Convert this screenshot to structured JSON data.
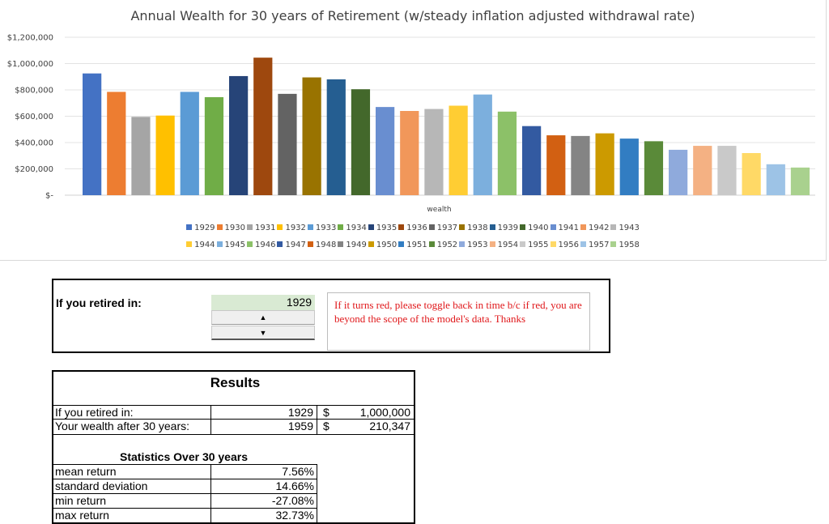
{
  "chart_data": {
    "type": "bar",
    "title": "Annual Wealth for 30 years of Retirement (w/steady inflation adjusted withdrawal rate)",
    "xlabel": "wealth",
    "ylabel": "",
    "ylim": [
      0,
      1200000
    ],
    "yticks": [
      "$-",
      "$200,000",
      "$400,000",
      "$600,000",
      "$800,000",
      "$1,000,000",
      "$1,200,000"
    ],
    "grid": true,
    "legend_position": "bottom",
    "series": [
      {
        "name": "1929",
        "values": [
          925000
        ],
        "color": "#4472C4"
      },
      {
        "name": "1930",
        "values": [
          785000
        ],
        "color": "#ED7D31"
      },
      {
        "name": "1931",
        "values": [
          595000
        ],
        "color": "#A5A5A5"
      },
      {
        "name": "1932",
        "values": [
          605000
        ],
        "color": "#FFC000"
      },
      {
        "name": "1933",
        "values": [
          785000
        ],
        "color": "#5B9BD5"
      },
      {
        "name": "1934",
        "values": [
          745000
        ],
        "color": "#70AD47"
      },
      {
        "name": "1935",
        "values": [
          905000
        ],
        "color": "#264478"
      },
      {
        "name": "1936",
        "values": [
          1045000
        ],
        "color": "#9E480E"
      },
      {
        "name": "1937",
        "values": [
          770000
        ],
        "color": "#636363"
      },
      {
        "name": "1938",
        "values": [
          895000
        ],
        "color": "#997300"
      },
      {
        "name": "1939",
        "values": [
          880000
        ],
        "color": "#255E91"
      },
      {
        "name": "1940",
        "values": [
          805000
        ],
        "color": "#43682B"
      },
      {
        "name": "1941",
        "values": [
          670000
        ],
        "color": "#698ED0"
      },
      {
        "name": "1942",
        "values": [
          640000
        ],
        "color": "#F1975A"
      },
      {
        "name": "1943",
        "values": [
          655000
        ],
        "color": "#B7B7B7"
      },
      {
        "name": "1944",
        "values": [
          680000
        ],
        "color": "#FFCD33"
      },
      {
        "name": "1945",
        "values": [
          765000
        ],
        "color": "#7CAFDD"
      },
      {
        "name": "1946",
        "values": [
          635000
        ],
        "color": "#8CC168"
      },
      {
        "name": "1947",
        "values": [
          525000
        ],
        "color": "#335AA1"
      },
      {
        "name": "1948",
        "values": [
          455000
        ],
        "color": "#D26012"
      },
      {
        "name": "1949",
        "values": [
          450000
        ],
        "color": "#848484"
      },
      {
        "name": "1950",
        "values": [
          470000
        ],
        "color": "#CC9A00"
      },
      {
        "name": "1951",
        "values": [
          430000
        ],
        "color": "#327DC2"
      },
      {
        "name": "1952",
        "values": [
          410000
        ],
        "color": "#5A8A39"
      },
      {
        "name": "1953",
        "values": [
          345000
        ],
        "color": "#8FAADC"
      },
      {
        "name": "1954",
        "values": [
          375000
        ],
        "color": "#F4B183"
      },
      {
        "name": "1955",
        "values": [
          375000
        ],
        "color": "#C9C9C9"
      },
      {
        "name": "1956",
        "values": [
          320000
        ],
        "color": "#FFD966"
      },
      {
        "name": "1957",
        "values": [
          235000
        ],
        "color": "#9DC3E6"
      },
      {
        "name": "1958",
        "values": [
          210000
        ],
        "color": "#A9D18E"
      }
    ]
  },
  "input": {
    "label": "If you retired in:",
    "year": "1929",
    "up_icon": "▲",
    "down_icon": "▼",
    "note": "If it turns red, please toggle back in time b/c if red, you are beyond the scope of the model's data. Thanks"
  },
  "results": {
    "title": "Results",
    "rows": [
      {
        "label": "If you retired in:",
        "year": "1929",
        "currency": "$",
        "amount": "1,000,000"
      },
      {
        "label": "Your wealth after 30 years:",
        "year": "1959",
        "currency": "$",
        "amount": "210,347"
      }
    ],
    "stats_title": "Statistics Over 30 years",
    "stats": [
      {
        "label": "mean return",
        "value": "7.56%"
      },
      {
        "label": "standard deviation",
        "value": "14.66%"
      },
      {
        "label": "min return",
        "value": "-27.08%"
      },
      {
        "label": "max return",
        "value": "32.73%"
      }
    ]
  }
}
